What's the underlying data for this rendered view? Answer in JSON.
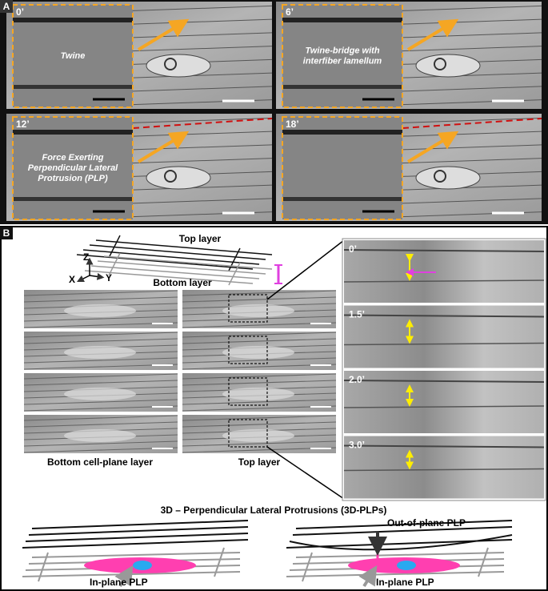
{
  "panel_a": {
    "label": "A",
    "frames": [
      {
        "time": "0’",
        "caption": [
          "Twine"
        ]
      },
      {
        "time": "6’",
        "caption": [
          "Twine-bridge with",
          "interfiber lamellum"
        ]
      },
      {
        "time": "12’",
        "caption": [
          "Force Exerting",
          "Perpendicular Lateral",
          "Protrusion (PLP)"
        ]
      },
      {
        "time": "18’",
        "caption": []
      }
    ]
  },
  "panel_b": {
    "label": "B",
    "schematic": {
      "top": "Top layer",
      "bottom": "Bottom layer",
      "axes": [
        "Z",
        "X",
        "Y"
      ]
    },
    "column_labels": [
      "Bottom cell-plane layer",
      "Top layer"
    ],
    "zoom_times": [
      "0’",
      "1.5’",
      "2.0’",
      "3.0’"
    ]
  },
  "panel_3d": {
    "title": "3D – Perpendicular Lateral Protrusions (3D-PLPs)",
    "in_plane": "In-plane PLP",
    "out_of_plane": "Out-of-plane PLP"
  }
}
